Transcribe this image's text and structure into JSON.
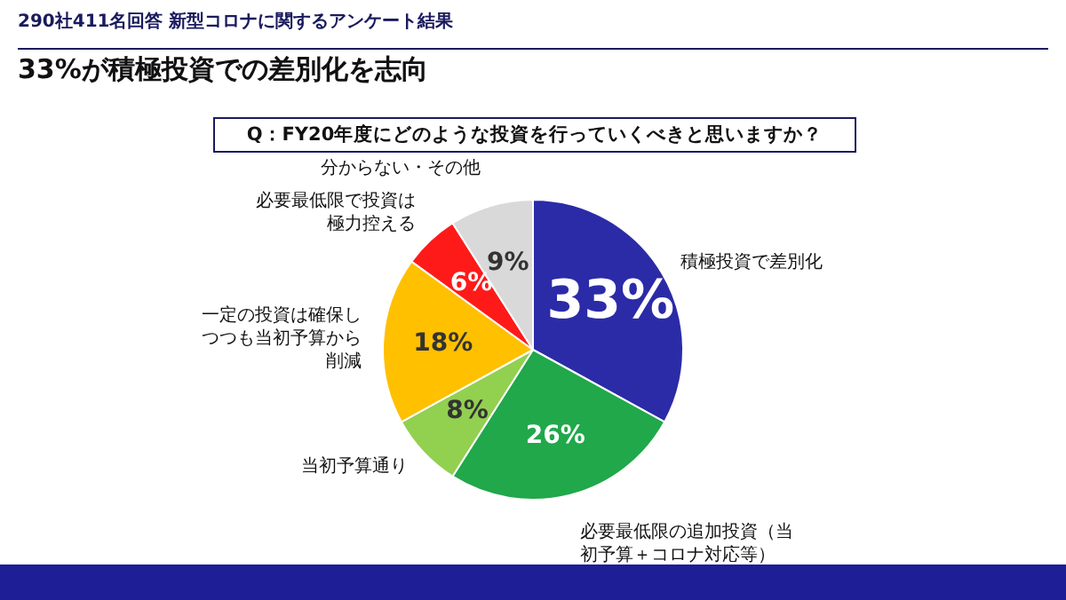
{
  "chart_data": {
    "type": "pie",
    "title": "33%が積極投資での差別化を志向",
    "subtitle": "Q：FY20年度にどのような投資を行っていくべきと思いますか？",
    "annotations": [
      "290社411名回答 新型コロナに関するアンケート結果"
    ],
    "categories": [
      "積極投資で差別化",
      "必要最低限の追加投資（当初予算＋コロナ対応等）",
      "当初予算通り",
      "一定の投資は確保しつつも当初予算から削減",
      "必要最低限で投資は極力控える",
      "分からない・その他"
    ],
    "values": [
      33,
      26,
      8,
      18,
      6,
      9
    ],
    "colors": [
      "#2b2ba8",
      "#20a84a",
      "#92d050",
      "#ffc000",
      "#ff1a1a",
      "#d9d9d9"
    ],
    "value_labels": [
      "33%",
      "26%",
      "8%",
      "18%",
      "6%",
      "9%"
    ],
    "legend": false
  }
}
